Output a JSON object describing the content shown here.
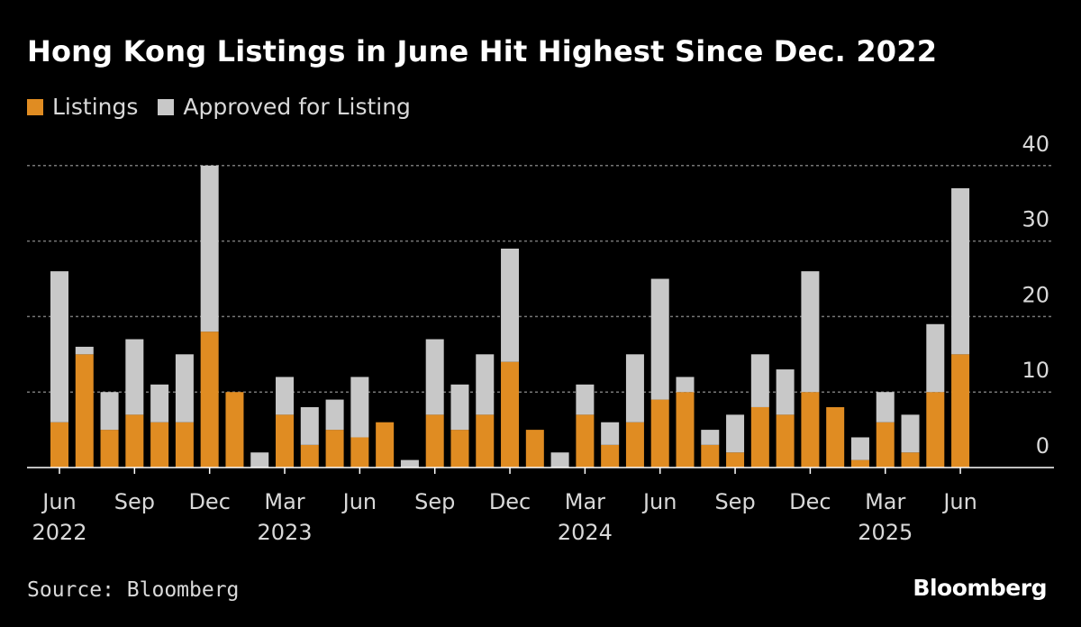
{
  "title": "Hong Kong Listings in June Hit Highest Since Dec. 2022",
  "legend": [
    {
      "label": "Listings",
      "color": "#e08c22"
    },
    {
      "label": "Approved for Listing",
      "color": "#c8c8c8"
    }
  ],
  "source": "Source: Bloomberg",
  "logo": "Bloomberg",
  "colors": {
    "background": "#000000",
    "listings": "#e08c22",
    "approved": "#c8c8c8",
    "gridline": "#777777",
    "axis_text": "#d9d9d9"
  },
  "chart_data": {
    "type": "bar",
    "stacked": true,
    "title": "Hong Kong Listings in June Hit Highest Since Dec. 2022",
    "ylim": [
      0,
      40
    ],
    "yticks": [
      0,
      10,
      20,
      30,
      40
    ],
    "y_axis_side": "right",
    "categories": [
      "2022-06",
      "2022-07",
      "2022-08",
      "2022-09",
      "2022-10",
      "2022-11",
      "2022-12",
      "2023-01",
      "2023-02",
      "2023-03",
      "2023-04",
      "2023-05",
      "2023-06",
      "2023-07",
      "2023-08",
      "2023-09",
      "2023-10",
      "2023-11",
      "2023-12",
      "2024-01",
      "2024-02",
      "2024-03",
      "2024-04",
      "2024-05",
      "2024-06",
      "2024-07",
      "2024-08",
      "2024-09",
      "2024-10",
      "2024-11",
      "2024-12",
      "2025-01",
      "2025-02",
      "2025-03",
      "2025-04",
      "2025-05",
      "2025-06"
    ],
    "x_tick_labels": [
      {
        "index": 0,
        "month": "Jun",
        "year": "2022"
      },
      {
        "index": 3,
        "month": "Sep",
        "year": ""
      },
      {
        "index": 6,
        "month": "Dec",
        "year": ""
      },
      {
        "index": 9,
        "month": "Mar",
        "year": "2023"
      },
      {
        "index": 12,
        "month": "Jun",
        "year": ""
      },
      {
        "index": 15,
        "month": "Sep",
        "year": ""
      },
      {
        "index": 18,
        "month": "Dec",
        "year": ""
      },
      {
        "index": 21,
        "month": "Mar",
        "year": "2024"
      },
      {
        "index": 24,
        "month": "Jun",
        "year": ""
      },
      {
        "index": 27,
        "month": "Sep",
        "year": ""
      },
      {
        "index": 30,
        "month": "Dec",
        "year": ""
      },
      {
        "index": 33,
        "month": "Mar",
        "year": "2025"
      },
      {
        "index": 36,
        "month": "Jun",
        "year": ""
      }
    ],
    "series": [
      {
        "name": "Listings",
        "values": [
          6,
          15,
          5,
          7,
          6,
          6,
          18,
          10,
          0,
          7,
          3,
          5,
          4,
          6,
          0,
          7,
          5,
          7,
          14,
          5,
          0,
          7,
          3,
          6,
          9,
          10,
          3,
          2,
          8,
          7,
          10,
          8,
          1,
          6,
          2,
          10,
          15
        ]
      },
      {
        "name": "Approved for Listing",
        "values": [
          20,
          1,
          5,
          10,
          5,
          9,
          22,
          0,
          2,
          5,
          5,
          4,
          8,
          0,
          1,
          10,
          6,
          8,
          15,
          0,
          2,
          4,
          3,
          9,
          16,
          2,
          2,
          5,
          7,
          6,
          16,
          0,
          3,
          4,
          5,
          9,
          22
        ]
      }
    ]
  }
}
